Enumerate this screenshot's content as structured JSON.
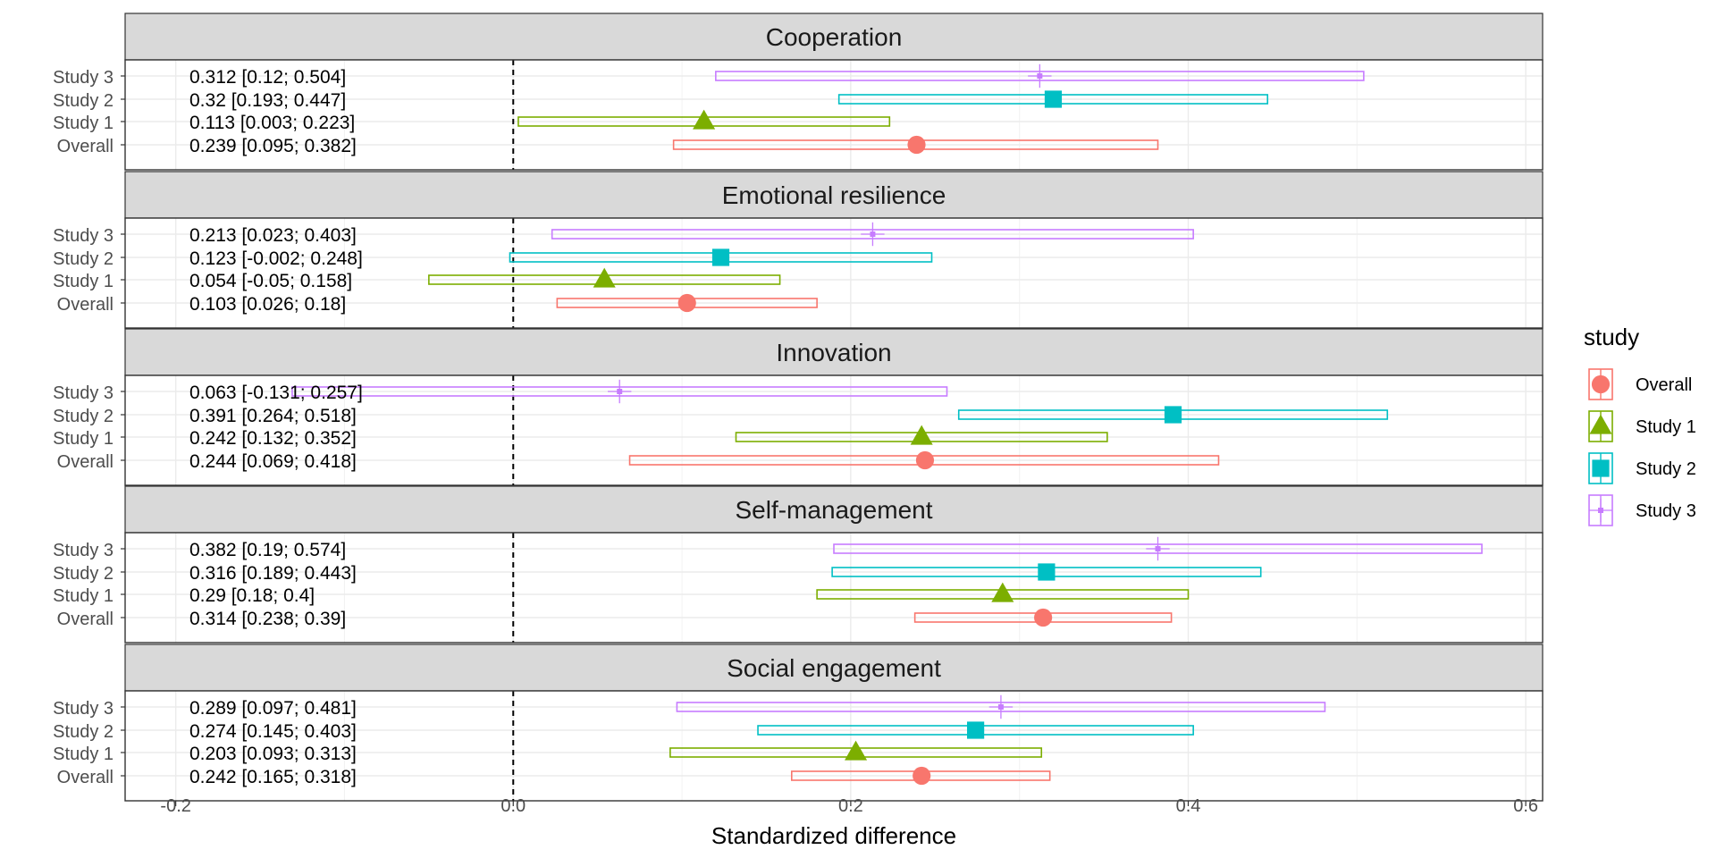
{
  "chart_data": {
    "type": "forest",
    "xlabel": "Standardized difference",
    "xlim": [
      -0.23,
      0.61
    ],
    "xticks": [
      -0.2,
      0.0,
      0.2,
      0.4,
      0.6
    ],
    "xtick_labels": [
      "-0.2",
      "0.0",
      "0.2",
      "0.4",
      "0.6"
    ],
    "reference_line": 0,
    "row_order": [
      "Study 3",
      "Study 2",
      "Study 1",
      "Overall"
    ],
    "legend": {
      "title": "study",
      "entries": [
        {
          "label": "Overall",
          "shape": "circle",
          "color": "#F8766D"
        },
        {
          "label": "Study 1",
          "shape": "triangle",
          "color": "#7CAE00"
        },
        {
          "label": "Study 2",
          "shape": "square",
          "color": "#00BFC4"
        },
        {
          "label": "Study 3",
          "shape": "plus",
          "color": "#C77CFF"
        }
      ]
    },
    "panels": [
      {
        "title": "Cooperation",
        "rows": [
          {
            "study": "Study 3",
            "estimate": 0.312,
            "lower": 0.12,
            "upper": 0.504,
            "label": "0.312 [0.12; 0.504]"
          },
          {
            "study": "Study 2",
            "estimate": 0.32,
            "lower": 0.193,
            "upper": 0.447,
            "label": "0.32 [0.193; 0.447]"
          },
          {
            "study": "Study 1",
            "estimate": 0.113,
            "lower": 0.003,
            "upper": 0.223,
            "label": "0.113 [0.003; 0.223]"
          },
          {
            "study": "Overall",
            "estimate": 0.239,
            "lower": 0.095,
            "upper": 0.382,
            "label": "0.239 [0.095; 0.382]"
          }
        ]
      },
      {
        "title": "Emotional resilience",
        "rows": [
          {
            "study": "Study 3",
            "estimate": 0.213,
            "lower": 0.023,
            "upper": 0.403,
            "label": "0.213 [0.023; 0.403]"
          },
          {
            "study": "Study 2",
            "estimate": 0.123,
            "lower": -0.002,
            "upper": 0.248,
            "label": "0.123 [-0.002; 0.248]"
          },
          {
            "study": "Study 1",
            "estimate": 0.054,
            "lower": -0.05,
            "upper": 0.158,
            "label": "0.054 [-0.05; 0.158]"
          },
          {
            "study": "Overall",
            "estimate": 0.103,
            "lower": 0.026,
            "upper": 0.18,
            "label": "0.103 [0.026; 0.18]"
          }
        ]
      },
      {
        "title": "Innovation",
        "rows": [
          {
            "study": "Study 3",
            "estimate": 0.063,
            "lower": -0.131,
            "upper": 0.257,
            "label": "0.063 [-0.131; 0.257]"
          },
          {
            "study": "Study 2",
            "estimate": 0.391,
            "lower": 0.264,
            "upper": 0.518,
            "label": "0.391 [0.264; 0.518]"
          },
          {
            "study": "Study 1",
            "estimate": 0.242,
            "lower": 0.132,
            "upper": 0.352,
            "label": "0.242 [0.132; 0.352]"
          },
          {
            "study": "Overall",
            "estimate": 0.244,
            "lower": 0.069,
            "upper": 0.418,
            "label": "0.244 [0.069; 0.418]"
          }
        ]
      },
      {
        "title": "Self-management",
        "rows": [
          {
            "study": "Study 3",
            "estimate": 0.382,
            "lower": 0.19,
            "upper": 0.574,
            "label": "0.382 [0.19; 0.574]"
          },
          {
            "study": "Study 2",
            "estimate": 0.316,
            "lower": 0.189,
            "upper": 0.443,
            "label": "0.316 [0.189; 0.443]"
          },
          {
            "study": "Study 1",
            "estimate": 0.29,
            "lower": 0.18,
            "upper": 0.4,
            "label": "0.29 [0.18; 0.4]"
          },
          {
            "study": "Overall",
            "estimate": 0.314,
            "lower": 0.238,
            "upper": 0.39,
            "label": "0.314 [0.238; 0.39]"
          }
        ]
      },
      {
        "title": "Social engagement",
        "rows": [
          {
            "study": "Study 3",
            "estimate": 0.289,
            "lower": 0.097,
            "upper": 0.481,
            "label": "0.289 [0.097; 0.481]"
          },
          {
            "study": "Study 2",
            "estimate": 0.274,
            "lower": 0.145,
            "upper": 0.403,
            "label": "0.274 [0.145; 0.403]"
          },
          {
            "study": "Study 1",
            "estimate": 0.203,
            "lower": 0.093,
            "upper": 0.313,
            "label": "0.203 [0.093; 0.313]"
          },
          {
            "study": "Overall",
            "estimate": 0.242,
            "lower": 0.165,
            "upper": 0.318,
            "label": "0.242 [0.165; 0.318]"
          }
        ]
      }
    ]
  }
}
